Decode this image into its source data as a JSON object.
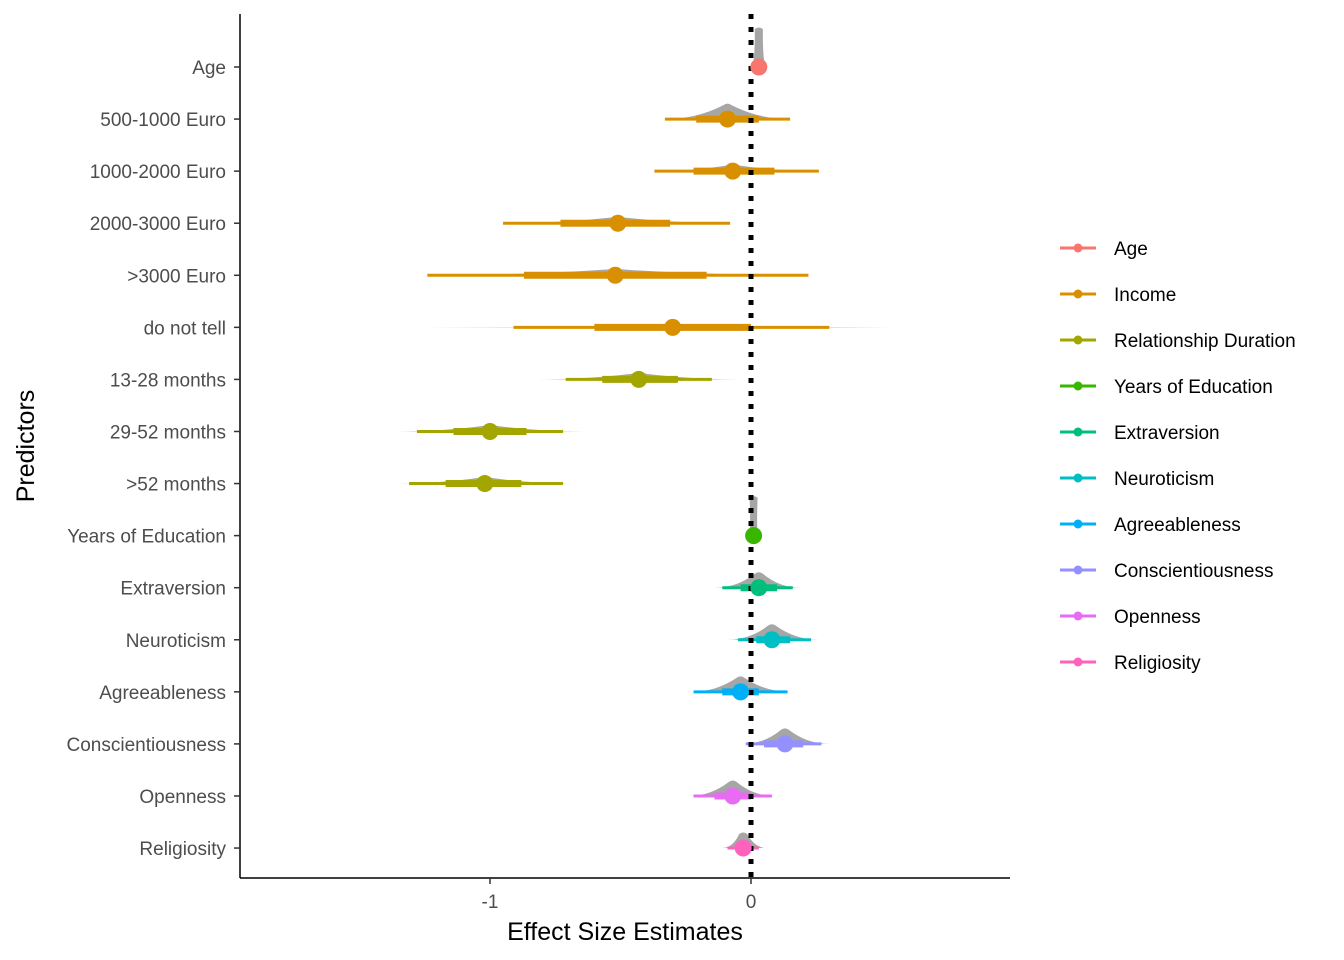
{
  "chart_data": {
    "type": "forest",
    "xlabel": "Effect Size Estimates",
    "ylabel": "Predictors",
    "xlim": [
      -1.92,
      0.98
    ],
    "x_ticks": [
      -1,
      0
    ],
    "x_tick_labels": [
      "-1",
      "0"
    ],
    "reference_line": 0,
    "grid": false,
    "legend_position": "right",
    "legend": [
      {
        "name": "Age",
        "color": "#F8766D"
      },
      {
        "name": "Income",
        "color": "#D89000"
      },
      {
        "name": "Relationship Duration",
        "color": "#A3A500"
      },
      {
        "name": "Years of Education",
        "color": "#39B600"
      },
      {
        "name": "Extraversion",
        "color": "#00BF7D"
      },
      {
        "name": "Neuroticism",
        "color": "#00BFC4"
      },
      {
        "name": "Agreeableness",
        "color": "#00B0F6"
      },
      {
        "name": "Conscientiousness",
        "color": "#9590FF"
      },
      {
        "name": "Openness",
        "color": "#E76BF3"
      },
      {
        "name": "Religiosity",
        "color": "#FF62BC"
      }
    ],
    "density_color": "#A6A6A6",
    "predictors": [
      {
        "label": "Age",
        "group": "Age",
        "estimate": 0.03,
        "inner": [
          0.02,
          0.04
        ],
        "outer": [
          0.01,
          0.05
        ],
        "density": [
          0.0,
          0.06
        ]
      },
      {
        "label": "500-1000 Euro",
        "group": "Income",
        "estimate": -0.09,
        "inner": [
          -0.21,
          0.03
        ],
        "outer": [
          -0.33,
          0.15
        ],
        "density": [
          -0.33,
          0.15
        ]
      },
      {
        "label": "1000-2000 Euro",
        "group": "Income",
        "estimate": -0.07,
        "inner": [
          -0.22,
          0.09
        ],
        "outer": [
          -0.37,
          0.26
        ],
        "density": [
          -0.37,
          0.26
        ]
      },
      {
        "label": "2000-3000 Euro",
        "group": "Income",
        "estimate": -0.51,
        "inner": [
          -0.73,
          -0.31
        ],
        "outer": [
          -0.95,
          -0.08
        ],
        "density": [
          -0.95,
          -0.08
        ]
      },
      {
        "label": ">3000 Euro",
        "group": "Income",
        "estimate": -0.52,
        "inner": [
          -0.87,
          -0.17
        ],
        "outer": [
          -1.24,
          0.22
        ],
        "density": [
          -1.24,
          0.22
        ]
      },
      {
        "label": "do not tell",
        "group": "Income",
        "estimate": -0.3,
        "inner": [
          -0.6,
          0.0
        ],
        "outer": [
          -0.91,
          0.3
        ],
        "density": [
          -1.25,
          0.62
        ]
      },
      {
        "label": "13-28 months",
        "group": "Relationship Duration",
        "estimate": -0.43,
        "inner": [
          -0.57,
          -0.28
        ],
        "outer": [
          -0.71,
          -0.15
        ],
        "density": [
          -0.82,
          -0.04
        ]
      },
      {
        "label": "29-52 months",
        "group": "Relationship Duration",
        "estimate": -1.0,
        "inner": [
          -1.14,
          -0.86
        ],
        "outer": [
          -1.28,
          -0.72
        ],
        "density": [
          -1.36,
          -0.64
        ]
      },
      {
        "label": ">52 months",
        "group": "Relationship Duration",
        "estimate": -1.02,
        "inner": [
          -1.17,
          -0.88
        ],
        "outer": [
          -1.31,
          -0.72
        ],
        "density": [
          -1.36,
          -0.67
        ]
      },
      {
        "label": "Years of Education",
        "group": "Years of Education",
        "estimate": 0.01,
        "inner": [
          0.0,
          0.02
        ],
        "outer": [
          -0.01,
          0.03
        ],
        "density": [
          -0.01,
          0.03
        ]
      },
      {
        "label": "Extraversion",
        "group": "Extraversion",
        "estimate": 0.03,
        "inner": [
          -0.04,
          0.1
        ],
        "outer": [
          -0.11,
          0.16
        ],
        "density": [
          -0.14,
          0.19
        ]
      },
      {
        "label": "Neuroticism",
        "group": "Neuroticism",
        "estimate": 0.08,
        "inner": [
          0.02,
          0.15
        ],
        "outer": [
          -0.05,
          0.23
        ],
        "density": [
          -0.09,
          0.26
        ]
      },
      {
        "label": "Agreeableness",
        "group": "Agreeableness",
        "estimate": -0.04,
        "inner": [
          -0.11,
          0.03
        ],
        "outer": [
          -0.22,
          0.14
        ],
        "density": [
          -0.23,
          0.15
        ]
      },
      {
        "label": "Conscientiousness",
        "group": "Conscientiousness",
        "estimate": 0.13,
        "inner": [
          0.05,
          0.2
        ],
        "outer": [
          -0.02,
          0.27
        ],
        "density": [
          -0.03,
          0.3
        ]
      },
      {
        "label": "Openness",
        "group": "Openness",
        "estimate": -0.07,
        "inner": [
          -0.14,
          0.0
        ],
        "outer": [
          -0.22,
          0.08
        ],
        "density": [
          -0.24,
          0.09
        ]
      },
      {
        "label": "Religiosity",
        "group": "Religiosity",
        "estimate": -0.03,
        "inner": [
          -0.06,
          0.0
        ],
        "outer": [
          -0.09,
          0.03
        ],
        "density": [
          -0.11,
          0.06
        ]
      }
    ]
  }
}
